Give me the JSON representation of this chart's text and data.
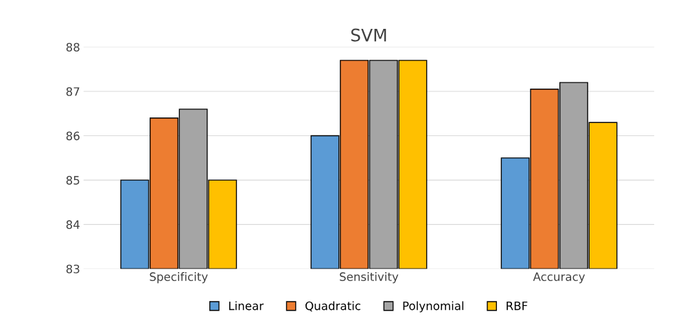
{
  "chart_data": {
    "type": "bar",
    "title": "SVM",
    "categories": [
      "Specificity",
      "Sensitivity",
      "Accuracy"
    ],
    "series": [
      {
        "name": "Linear",
        "color": "#5b9bd5",
        "values": [
          85.0,
          86.0,
          85.5
        ]
      },
      {
        "name": "Quadratic",
        "color": "#ed7d31",
        "values": [
          86.4,
          87.7,
          87.05
        ]
      },
      {
        "name": "Polynomial",
        "color": "#a5a5a5",
        "values": [
          86.6,
          87.7,
          87.2
        ]
      },
      {
        "name": "RBF",
        "color": "#ffc000",
        "values": [
          85.0,
          87.7,
          86.3
        ]
      }
    ],
    "ylim": [
      83,
      88
    ],
    "yticks": [
      83,
      84,
      85,
      86,
      87,
      88
    ],
    "grid": "y",
    "legend": "bottom"
  }
}
